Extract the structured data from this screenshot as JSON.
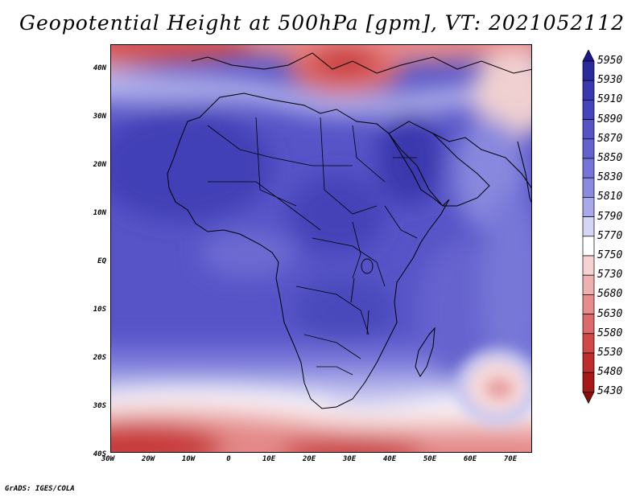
{
  "title": "Geopotential Height at 500hPa [gpm], VT: 2021052112",
  "footer": "GrADS: IGES/COLA",
  "map": {
    "lat_ticks": [
      "40N",
      "30N",
      "20N",
      "10N",
      "EQ",
      "10S",
      "20S",
      "30S",
      "40S"
    ],
    "lon_ticks": [
      "30W",
      "20W",
      "10W",
      "0",
      "10E",
      "20E",
      "30E",
      "40E",
      "50E",
      "60E",
      "70E"
    ]
  },
  "legend": {
    "levels": [
      "5950",
      "5930",
      "5910",
      "5890",
      "5870",
      "5850",
      "5830",
      "5810",
      "5790",
      "5770",
      "5750",
      "5730",
      "5680",
      "5630",
      "5580",
      "5530",
      "5480",
      "5430"
    ],
    "colors": [
      "#1c1a8a",
      "#2a2a9e",
      "#3a38b0",
      "#4644bc",
      "#5553c6",
      "#6462cf",
      "#7574d8",
      "#8a8ae0",
      "#a8a8ea",
      "#d5d5f5",
      "#ffffff",
      "#f7d2d2",
      "#efb0b0",
      "#e68c8c",
      "#dc6a6a",
      "#d04848",
      "#c02c2c",
      "#a81818",
      "#8c0c0c"
    ]
  }
}
